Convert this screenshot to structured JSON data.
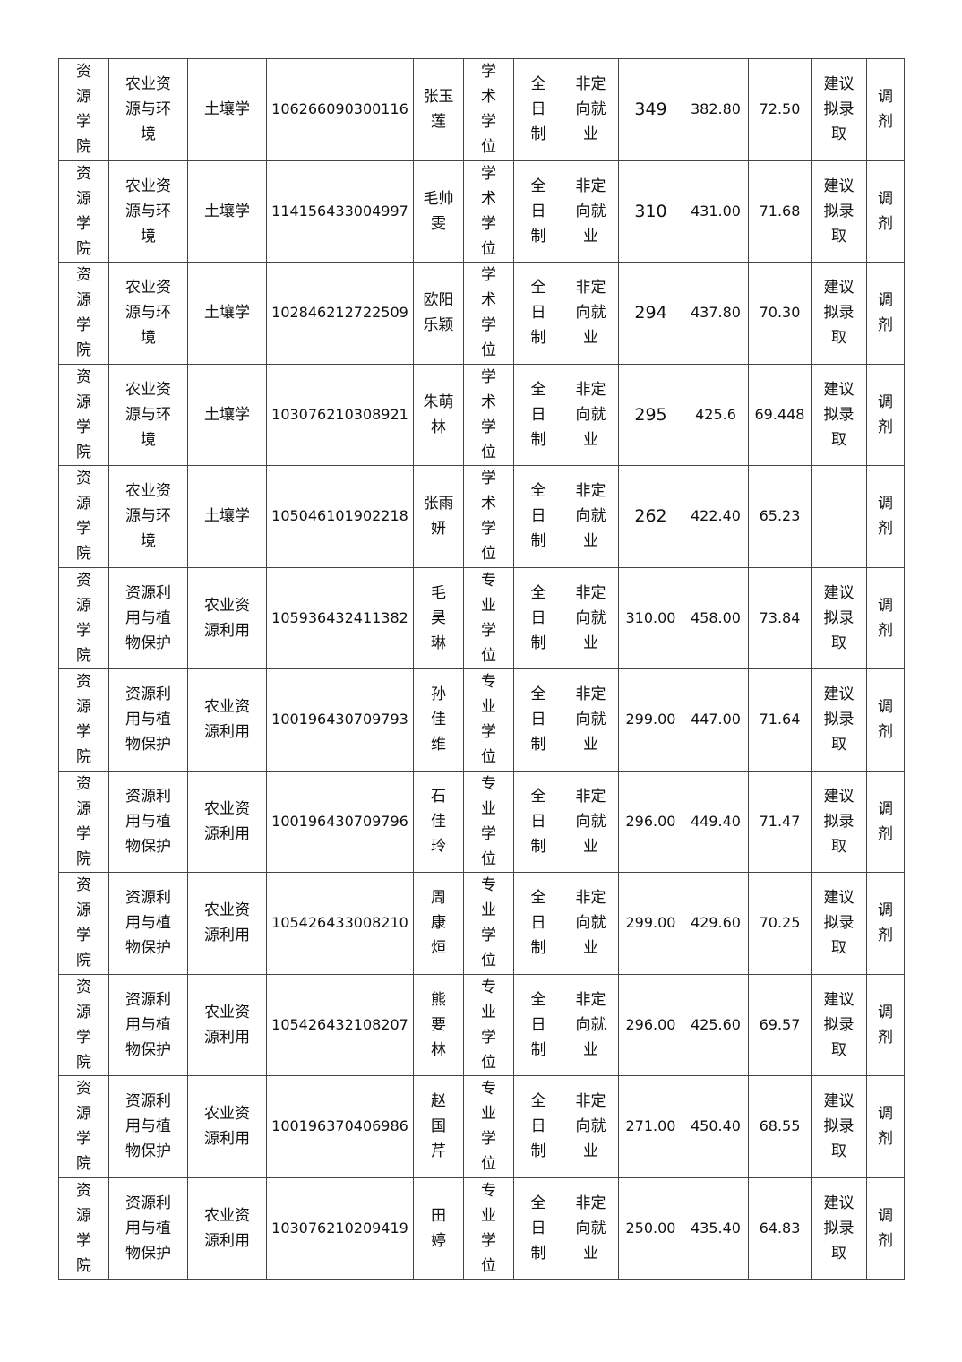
{
  "table": {
    "rows": [
      {
        "college": "资源学院",
        "major_group": "农业资源与环境",
        "major": "土壤学",
        "exam_id": "106266090300116",
        "name": "张玉莲",
        "degree": "学术学位",
        "study_mode": "全日制",
        "employment": "非定向就业",
        "initial_score": "349",
        "total_score": "382.80",
        "composite": "72.50",
        "decision": "建议拟录取",
        "type": "调剂"
      },
      {
        "college": "资源学院",
        "major_group": "农业资源与环境",
        "major": "土壤学",
        "exam_id": "114156433004997",
        "name": "毛帅雯",
        "degree": "学术学位",
        "study_mode": "全日制",
        "employment": "非定向就业",
        "initial_score": "310",
        "total_score": "431.00",
        "composite": "71.68",
        "decision": "建议拟录取",
        "type": "调剂"
      },
      {
        "college": "资源学院",
        "major_group": "农业资源与环境",
        "major": "土壤学",
        "exam_id": "102846212722509",
        "name": "欧阳乐颖",
        "degree": "学术学位",
        "study_mode": "全日制",
        "employment": "非定向就业",
        "initial_score": "294",
        "total_score": "437.80",
        "composite": "70.30",
        "decision": "建议拟录取",
        "type": "调剂"
      },
      {
        "college": "资源学院",
        "major_group": "农业资源与环境",
        "major": "土壤学",
        "exam_id": "103076210308921",
        "name": "朱萌林",
        "degree": "学术学位",
        "study_mode": "全日制",
        "employment": "非定向就业",
        "initial_score": "295",
        "total_score": "425.6",
        "composite": "69.448",
        "decision": "建议拟录取",
        "type": "调剂"
      },
      {
        "college": "资源学院",
        "major_group": "农业资源与环境",
        "major": "土壤学",
        "exam_id": "105046101902218",
        "name": "张雨妍",
        "degree": "学术学位",
        "study_mode": "全日制",
        "employment": "非定向就业",
        "initial_score": "262",
        "total_score": "422.40",
        "composite": "65.23",
        "decision": "",
        "type": "调剂"
      },
      {
        "college": "资源学院",
        "major_group": "资源利用与植物保护",
        "major": "农业资源利用",
        "exam_id": "105936432411382",
        "name": "毛昊琳",
        "degree": "专业学位",
        "study_mode": "全日制",
        "employment": "非定向就业",
        "initial_score": "310.00",
        "total_score": "458.00",
        "composite": "73.84",
        "decision": "建议拟录取",
        "type": "调剂"
      },
      {
        "college": "资源学院",
        "major_group": "资源利用与植物保护",
        "major": "农业资源利用",
        "exam_id": "100196430709793",
        "name": "孙佳维",
        "degree": "专业学位",
        "study_mode": "全日制",
        "employment": "非定向就业",
        "initial_score": "299.00",
        "total_score": "447.00",
        "composite": "71.64",
        "decision": "建议拟录取",
        "type": "调剂"
      },
      {
        "college": "资源学院",
        "major_group": "资源利用与植物保护",
        "major": "农业资源利用",
        "exam_id": "100196430709796",
        "name": "石佳玲",
        "degree": "专业学位",
        "study_mode": "全日制",
        "employment": "非定向就业",
        "initial_score": "296.00",
        "total_score": "449.40",
        "composite": "71.47",
        "decision": "建议拟录取",
        "type": "调剂"
      },
      {
        "college": "资源学院",
        "major_group": "资源利用与植物保护",
        "major": "农业资源利用",
        "exam_id": "105426433008210",
        "name": "周康烜",
        "degree": "专业学位",
        "study_mode": "全日制",
        "employment": "非定向就业",
        "initial_score": "299.00",
        "total_score": "429.60",
        "composite": "70.25",
        "decision": "建议拟录取",
        "type": "调剂"
      },
      {
        "college": "资源学院",
        "major_group": "资源利用与植物保护",
        "major": "农业资源利用",
        "exam_id": "105426432108207",
        "name": "熊要林",
        "degree": "专业学位",
        "study_mode": "全日制",
        "employment": "非定向就业",
        "initial_score": "296.00",
        "total_score": "425.60",
        "composite": "69.57",
        "decision": "建议拟录取",
        "type": "调剂"
      },
      {
        "college": "资源学院",
        "major_group": "资源利用与植物保护",
        "major": "农业资源利用",
        "exam_id": "100196370406986",
        "name": "赵国芹",
        "degree": "专业学位",
        "study_mode": "全日制",
        "employment": "非定向就业",
        "initial_score": "271.00",
        "total_score": "450.40",
        "composite": "68.55",
        "decision": "建议拟录取",
        "type": "调剂"
      },
      {
        "college": "资源学院",
        "major_group": "资源利用与植物保护",
        "major": "农业资源利用",
        "exam_id": "103076210209419",
        "name": "田婷",
        "degree": "专业学位",
        "study_mode": "全日制",
        "employment": "非定向就业",
        "initial_score": "250.00",
        "total_score": "435.40",
        "composite": "64.83",
        "decision": "建议拟录取",
        "type": "调剂"
      }
    ]
  }
}
